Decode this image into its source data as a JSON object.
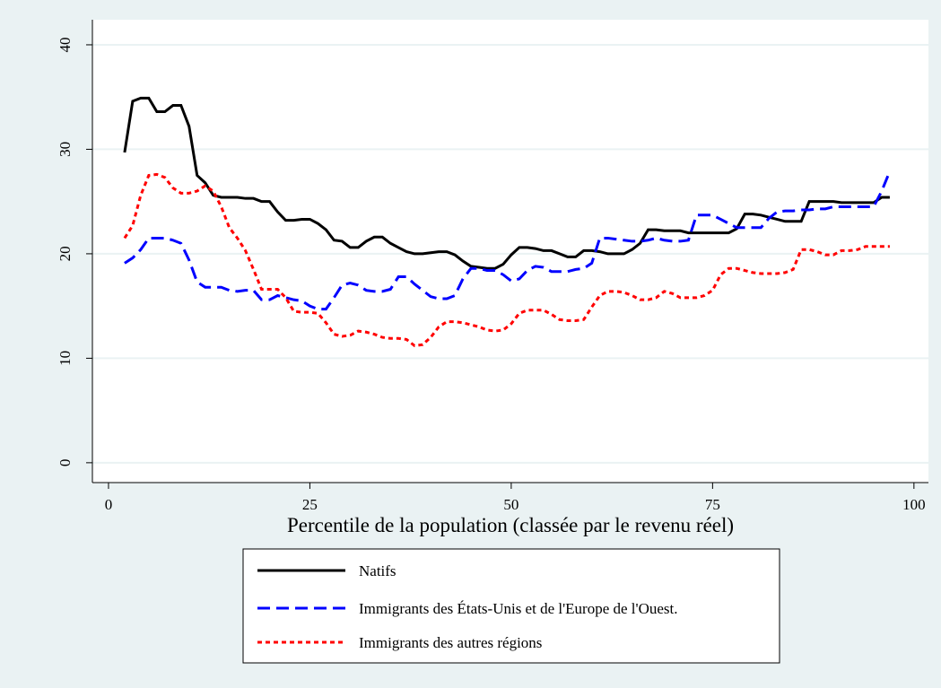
{
  "chart_data": {
    "type": "line",
    "xlabel": "Percentile de la population (classée par le revenu réel)",
    "x": [
      2,
      3,
      4,
      5,
      6,
      7,
      8,
      9,
      10,
      11,
      12,
      13,
      14,
      15,
      16,
      17,
      18,
      19,
      20,
      21,
      22,
      23,
      24,
      25,
      26,
      27,
      28,
      29,
      30,
      31,
      32,
      33,
      34,
      35,
      36,
      37,
      38,
      39,
      40,
      41,
      42,
      43,
      44,
      45,
      46,
      47,
      48,
      49,
      50,
      51,
      52,
      53,
      54,
      55,
      56,
      57,
      58,
      59,
      60,
      61,
      62,
      63,
      64,
      65,
      66,
      67,
      68,
      69,
      70,
      71,
      72,
      73,
      74,
      75,
      76,
      77,
      78,
      79,
      80,
      81,
      82,
      83,
      84,
      85,
      86,
      87,
      88,
      89,
      90,
      91,
      92,
      93,
      94,
      95,
      96,
      97
    ],
    "series": [
      {
        "name": "Natifs",
        "color": "#000000",
        "style": "solid",
        "values": [
          29.7,
          34.6,
          34.9,
          34.9,
          33.6,
          33.6,
          34.2,
          34.2,
          32.2,
          27.5,
          26.8,
          25.6,
          25.4,
          25.4,
          25.4,
          25.3,
          25.3,
          25.0,
          25.0,
          24.0,
          23.2,
          23.2,
          23.3,
          23.3,
          22.9,
          22.3,
          21.3,
          21.2,
          20.6,
          20.6,
          21.2,
          21.6,
          21.6,
          21.0,
          20.6,
          20.2,
          20.0,
          20.0,
          20.1,
          20.2,
          20.2,
          19.9,
          19.3,
          18.8,
          18.7,
          18.6,
          18.6,
          19.0,
          19.9,
          20.6,
          20.6,
          20.5,
          20.3,
          20.3,
          20.0,
          19.7,
          19.7,
          20.3,
          20.3,
          20.2,
          20.0,
          20.0,
          20.0,
          20.4,
          21.0,
          22.3,
          22.3,
          22.2,
          22.2,
          22.2,
          22.0,
          22.0,
          22.0,
          22.0,
          22.0,
          22.0,
          22.4,
          23.8,
          23.8,
          23.7,
          23.5,
          23.3,
          23.1,
          23.1,
          23.1,
          25.0,
          25.0,
          25.0,
          25.0,
          24.9,
          24.9,
          24.9,
          24.9,
          24.9,
          25.4,
          25.4
        ]
      },
      {
        "name": "Immigrants des États-Unis et de l'Europe de l'Ouest.",
        "color": "#0000ff",
        "style": "dashed",
        "values": [
          19.1,
          19.6,
          20.4,
          21.5,
          21.5,
          21.5,
          21.3,
          21.0,
          19.4,
          17.3,
          16.8,
          16.8,
          16.8,
          16.5,
          16.4,
          16.5,
          16.5,
          15.6,
          15.6,
          16.0,
          15.8,
          15.6,
          15.5,
          15.0,
          14.7,
          14.7,
          15.8,
          17.0,
          17.2,
          17.0,
          16.5,
          16.4,
          16.4,
          16.6,
          17.8,
          17.8,
          17.1,
          16.5,
          15.9,
          15.7,
          15.7,
          16.0,
          17.6,
          18.6,
          18.6,
          18.4,
          18.4,
          18.0,
          17.4,
          17.6,
          18.4,
          18.8,
          18.7,
          18.3,
          18.3,
          18.3,
          18.5,
          18.6,
          19.1,
          21.5,
          21.5,
          21.4,
          21.3,
          21.2,
          21.2,
          21.3,
          21.5,
          21.3,
          21.2,
          21.2,
          21.3,
          23.7,
          23.7,
          23.7,
          23.3,
          22.9,
          22.5,
          22.5,
          22.5,
          22.5,
          23.4,
          24.0,
          24.1,
          24.1,
          24.2,
          24.2,
          24.3,
          24.3,
          24.5,
          24.5,
          24.5,
          24.5,
          24.5,
          24.5,
          26.0,
          27.9
        ]
      },
      {
        "name": "Immigrants des autres régions",
        "color": "#ff0000",
        "style": "dotted",
        "values": [
          21.5,
          22.7,
          25.6,
          27.5,
          27.6,
          27.3,
          26.3,
          25.8,
          25.8,
          26.0,
          26.5,
          26.0,
          24.5,
          22.5,
          21.5,
          20.3,
          18.5,
          16.6,
          16.6,
          16.6,
          15.8,
          14.5,
          14.4,
          14.4,
          14.3,
          13.4,
          12.3,
          12.1,
          12.2,
          12.6,
          12.5,
          12.3,
          12.0,
          11.9,
          11.9,
          11.8,
          11.2,
          11.3,
          12.0,
          13.0,
          13.5,
          13.5,
          13.4,
          13.2,
          13.0,
          12.7,
          12.6,
          12.7,
          13.3,
          14.3,
          14.6,
          14.6,
          14.6,
          14.2,
          13.7,
          13.6,
          13.6,
          13.7,
          14.9,
          16.0,
          16.4,
          16.4,
          16.3,
          16.0,
          15.6,
          15.6,
          15.8,
          16.4,
          16.2,
          15.8,
          15.8,
          15.8,
          16.0,
          16.5,
          18.0,
          18.6,
          18.6,
          18.4,
          18.2,
          18.1,
          18.1,
          18.1,
          18.2,
          18.5,
          20.4,
          20.4,
          20.2,
          19.9,
          19.9,
          20.3,
          20.3,
          20.4,
          20.7,
          20.7,
          20.7,
          20.7
        ]
      }
    ],
    "xlim": [
      -2,
      101.8
    ],
    "ylim": [
      -1.9,
      42.4
    ],
    "xticks": [
      0,
      25,
      50,
      75,
      100
    ],
    "yticks": [
      0,
      10,
      20,
      30,
      40
    ],
    "grid": true
  }
}
